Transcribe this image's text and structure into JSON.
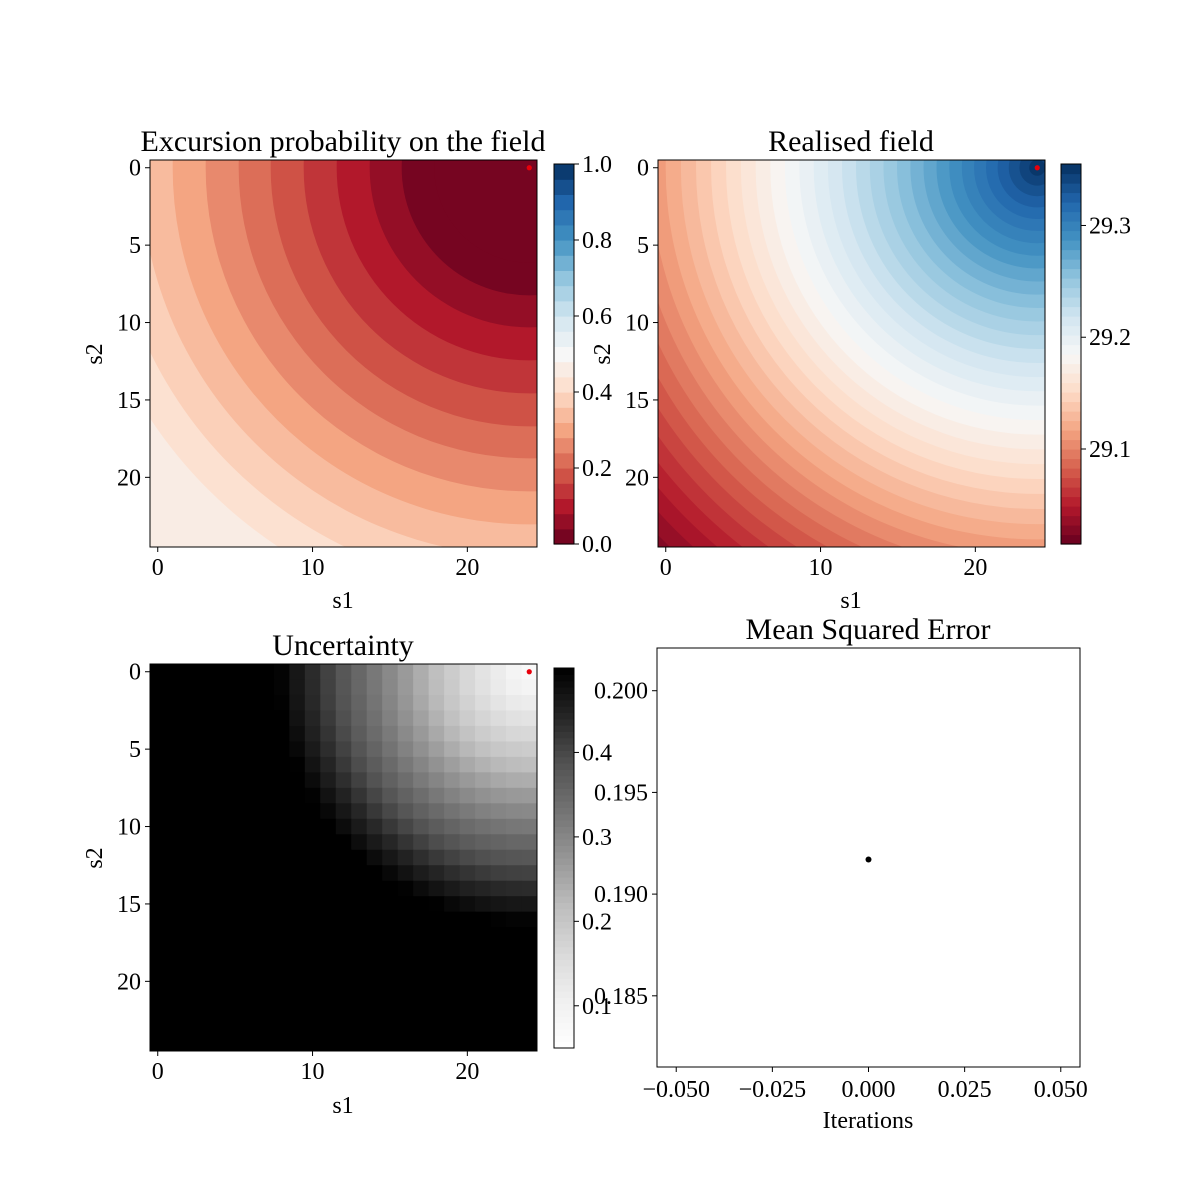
{
  "chart_data": [
    {
      "type": "heatmap",
      "title": "Excursion probability on the field",
      "xlabel": "s1",
      "ylabel": "s2",
      "grid_size": 25,
      "x_ticks": [
        0,
        10,
        20
      ],
      "y_ticks": [
        0,
        5,
        10,
        15,
        20
      ],
      "colormap": "RdBu",
      "levels": 25,
      "value_peak": 0.0,
      "value_far": 0.44,
      "colorbar_range": [
        0.0,
        1.0
      ],
      "colorbar_ticks": [
        "0.0",
        "0.2",
        "0.4",
        "0.6",
        "0.8",
        "1.0"
      ],
      "marker": {
        "s1": 24,
        "s2": 0,
        "color": "#e8000b"
      }
    },
    {
      "type": "heatmap",
      "title": "Realised field",
      "xlabel": "s1",
      "ylabel": "s2",
      "grid_size": 25,
      "x_ticks": [
        0,
        10,
        20
      ],
      "y_ticks": [
        0,
        5,
        10,
        15,
        20
      ],
      "colormap": "RdBu",
      "levels": 40,
      "colorbar_range": [
        29.015,
        29.355
      ],
      "colorbar_ticks": [
        "29.1",
        "29.2",
        "29.3"
      ],
      "marker": {
        "s1": 24,
        "s2": 0,
        "color": "#e8000b"
      }
    },
    {
      "type": "heatmap",
      "title": "Uncertainty",
      "xlabel": "s1",
      "ylabel": "s2",
      "grid_size": 25,
      "x_ticks": [
        0,
        10,
        20
      ],
      "y_ticks": [
        0,
        5,
        10,
        15,
        20
      ],
      "colormap": "Greys",
      "colorbar_range": [
        0.05,
        0.5
      ],
      "colorbar_ticks": [
        "0.1",
        "0.2",
        "0.3",
        "0.4"
      ],
      "marker": {
        "s1": 24,
        "s2": 0,
        "color": "#e8000b"
      }
    },
    {
      "type": "scatter",
      "title": "Mean Squared Error",
      "xlabel": "Iterations",
      "ylabel": "",
      "xlim": [
        -0.055,
        0.055
      ],
      "ylim": [
        0.1815,
        0.2021
      ],
      "x_ticks": [
        -0.05,
        -0.025,
        0.0,
        0.025,
        0.05
      ],
      "x_tick_labels": [
        "−0.050",
        "−0.025",
        "0.000",
        "0.025",
        "0.050"
      ],
      "y_ticks": [
        0.185,
        0.19,
        0.195,
        0.2
      ],
      "y_tick_labels": [
        "0.185",
        "0.190",
        "0.195",
        "0.200"
      ],
      "points": [
        {
          "x": 0.0,
          "y": 0.1917
        }
      ]
    }
  ]
}
